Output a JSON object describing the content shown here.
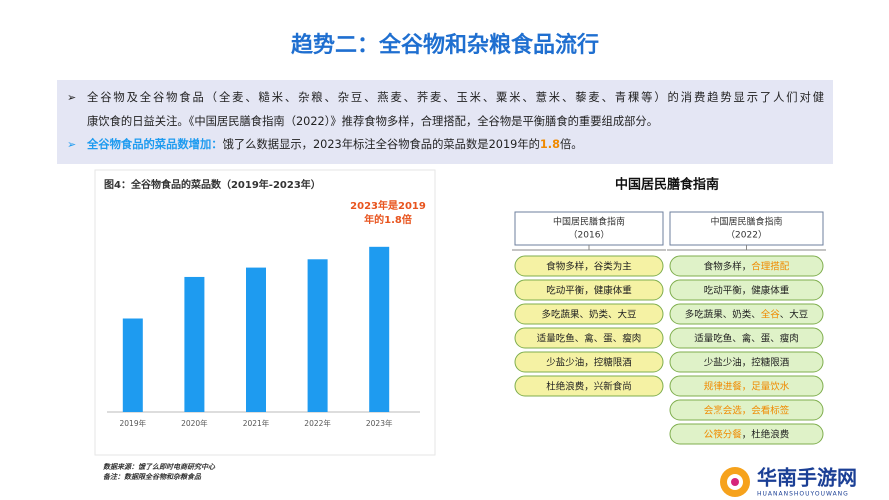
{
  "header": {
    "title": "趋势二：全谷物和杂粮食品流行"
  },
  "bullets": [
    {
      "marker": "➢",
      "lines": [
        "全谷物及全谷物食品（全麦、糙米、杂粮、杂豆、燕麦、荞麦、玉米、粟米、薏米、藜麦、青稞等）的消费趋势显示了人们对健",
        "康饮食的日益关注。《中国居民膳食指南（2022）》推荐食物多样，合理搭配，全谷物是平衡膳食的重要组成部分。"
      ]
    },
    {
      "marker": "➢",
      "segments": [
        {
          "text": "全谷物食品的菜品数增加：",
          "style": "lead"
        },
        {
          "text": "饿了么数据显示，2023年标注全谷物食品的菜品数是2019年的",
          "style": "plain"
        },
        {
          "text": "1.8",
          "style": "accent"
        },
        {
          "text": "倍。",
          "style": "plain"
        }
      ]
    }
  ],
  "chart_data": {
    "type": "bar",
    "title": "图4：全谷物食品的菜品数（2019年-2023年）",
    "annotation": [
      "2023年是2019",
      "年的1.8倍"
    ],
    "categories": [
      "2019年",
      "2020年",
      "2021年",
      "2022年",
      "2023年"
    ],
    "values": [
      90,
      130,
      139,
      147,
      159
    ],
    "ylim": [
      0,
      180
    ],
    "color": "#1e9bf0",
    "notes": [
      "数据来源：饿了么即时电商研究中心",
      "备注：数据限全谷物和杂粮食品"
    ]
  },
  "guide": {
    "title": "中国居民膳食指南",
    "columns": [
      {
        "heading": [
          "中国居民膳食指南",
          "（2016）"
        ],
        "items": [
          [
            {
              "text": "食物多样，谷类为主",
              "hl": false
            }
          ],
          [
            {
              "text": "吃动平衡，健康体重",
              "hl": false
            }
          ],
          [
            {
              "text": "多吃蔬果、奶类、大豆",
              "hl": false
            }
          ],
          [
            {
              "text": "适量吃鱼、禽、蛋、瘦肉",
              "hl": false
            }
          ],
          [
            {
              "text": "少盐少油，控糖限酒",
              "hl": false
            }
          ],
          [
            {
              "text": "杜绝浪费，兴新食尚",
              "hl": false
            }
          ]
        ]
      },
      {
        "heading": [
          "中国居民膳食指南",
          "（2022）"
        ],
        "items": [
          [
            {
              "text": "食物多样，",
              "hl": false
            },
            {
              "text": "合理搭配",
              "hl": true
            }
          ],
          [
            {
              "text": "吃动平衡，健康体重",
              "hl": false
            }
          ],
          [
            {
              "text": "多吃蔬果、奶类、",
              "hl": false
            },
            {
              "text": "全谷",
              "hl": true
            },
            {
              "text": "、大豆",
              "hl": false
            }
          ],
          [
            {
              "text": "适量吃鱼、禽、蛋、瘦肉",
              "hl": false
            }
          ],
          [
            {
              "text": "少盐少油，控糖限酒",
              "hl": false
            }
          ],
          [
            {
              "text": "规律进餐，足量饮水",
              "hl": true
            }
          ],
          [
            {
              "text": "会烹会选，会看标签",
              "hl": true
            }
          ],
          [
            {
              "text": "公筷分餐",
              "hl": true
            },
            {
              "text": "，杜绝浪费",
              "hl": false
            }
          ]
        ]
      }
    ]
  },
  "logo": {
    "name": "华南手游网",
    "sub": "HUANANSHOUYOUWANG"
  }
}
